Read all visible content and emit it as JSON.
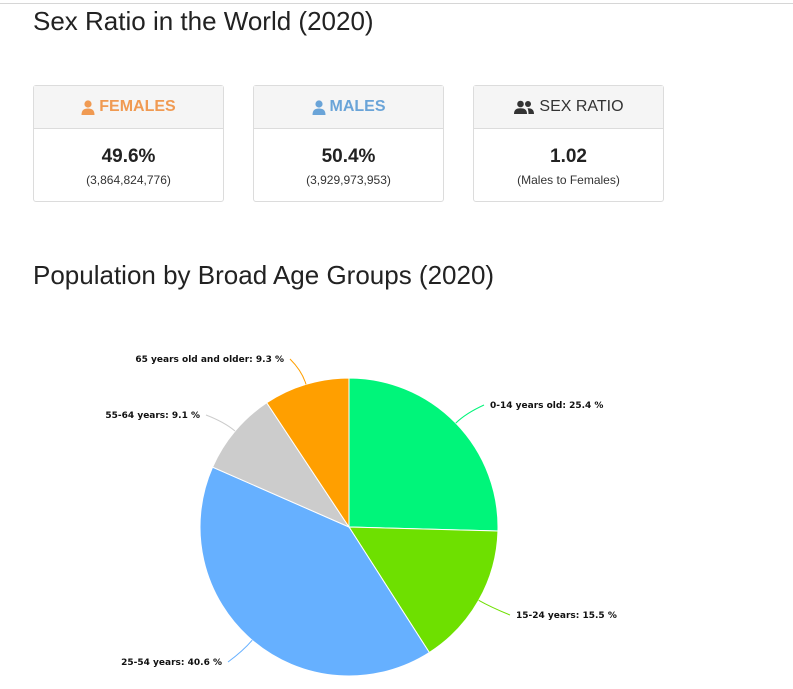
{
  "sex_ratio": {
    "title": "Sex Ratio in the World (2020)",
    "cards": [
      {
        "label": "FEMALES",
        "value": "49.6%",
        "sub": "(3,864,824,776)",
        "icon": "female-person-icon",
        "color": "#f09a52"
      },
      {
        "label": "MALES",
        "value": "50.4%",
        "sub": "(3,929,973,953)",
        "icon": "male-person-icon",
        "color": "#6aa4d8"
      },
      {
        "label": "SEX RATIO",
        "value": "1.02",
        "sub": "(Males to Females)",
        "icon": "people-group-icon",
        "color": "#333333"
      }
    ]
  },
  "age_groups": {
    "title": "Population by Broad Age Groups (2020)"
  },
  "chart_data": {
    "type": "pie",
    "title": "Population by Broad Age Groups (2020)",
    "start_angle_deg": 0,
    "direction": "clockwise",
    "slices": [
      {
        "label": "0-14 years old",
        "value": 25.4,
        "color": "#00f57a",
        "display": "0-14 years old: 25.4 %"
      },
      {
        "label": "15-24 years",
        "value": 15.5,
        "color": "#6ee000",
        "display": "15-24 years: 15.5 %"
      },
      {
        "label": "25-54 years",
        "value": 40.6,
        "color": "#66b0ff",
        "display": "25-54 years: 40.6 %"
      },
      {
        "label": "55-64 years",
        "value": 9.1,
        "color": "#cccccc",
        "display": "55-64 years: 9.1 %"
      },
      {
        "label": "65 years old and older",
        "value": 9.3,
        "color": "#ff9f00",
        "display": "65 years old and older: 9.3 %"
      }
    ]
  }
}
